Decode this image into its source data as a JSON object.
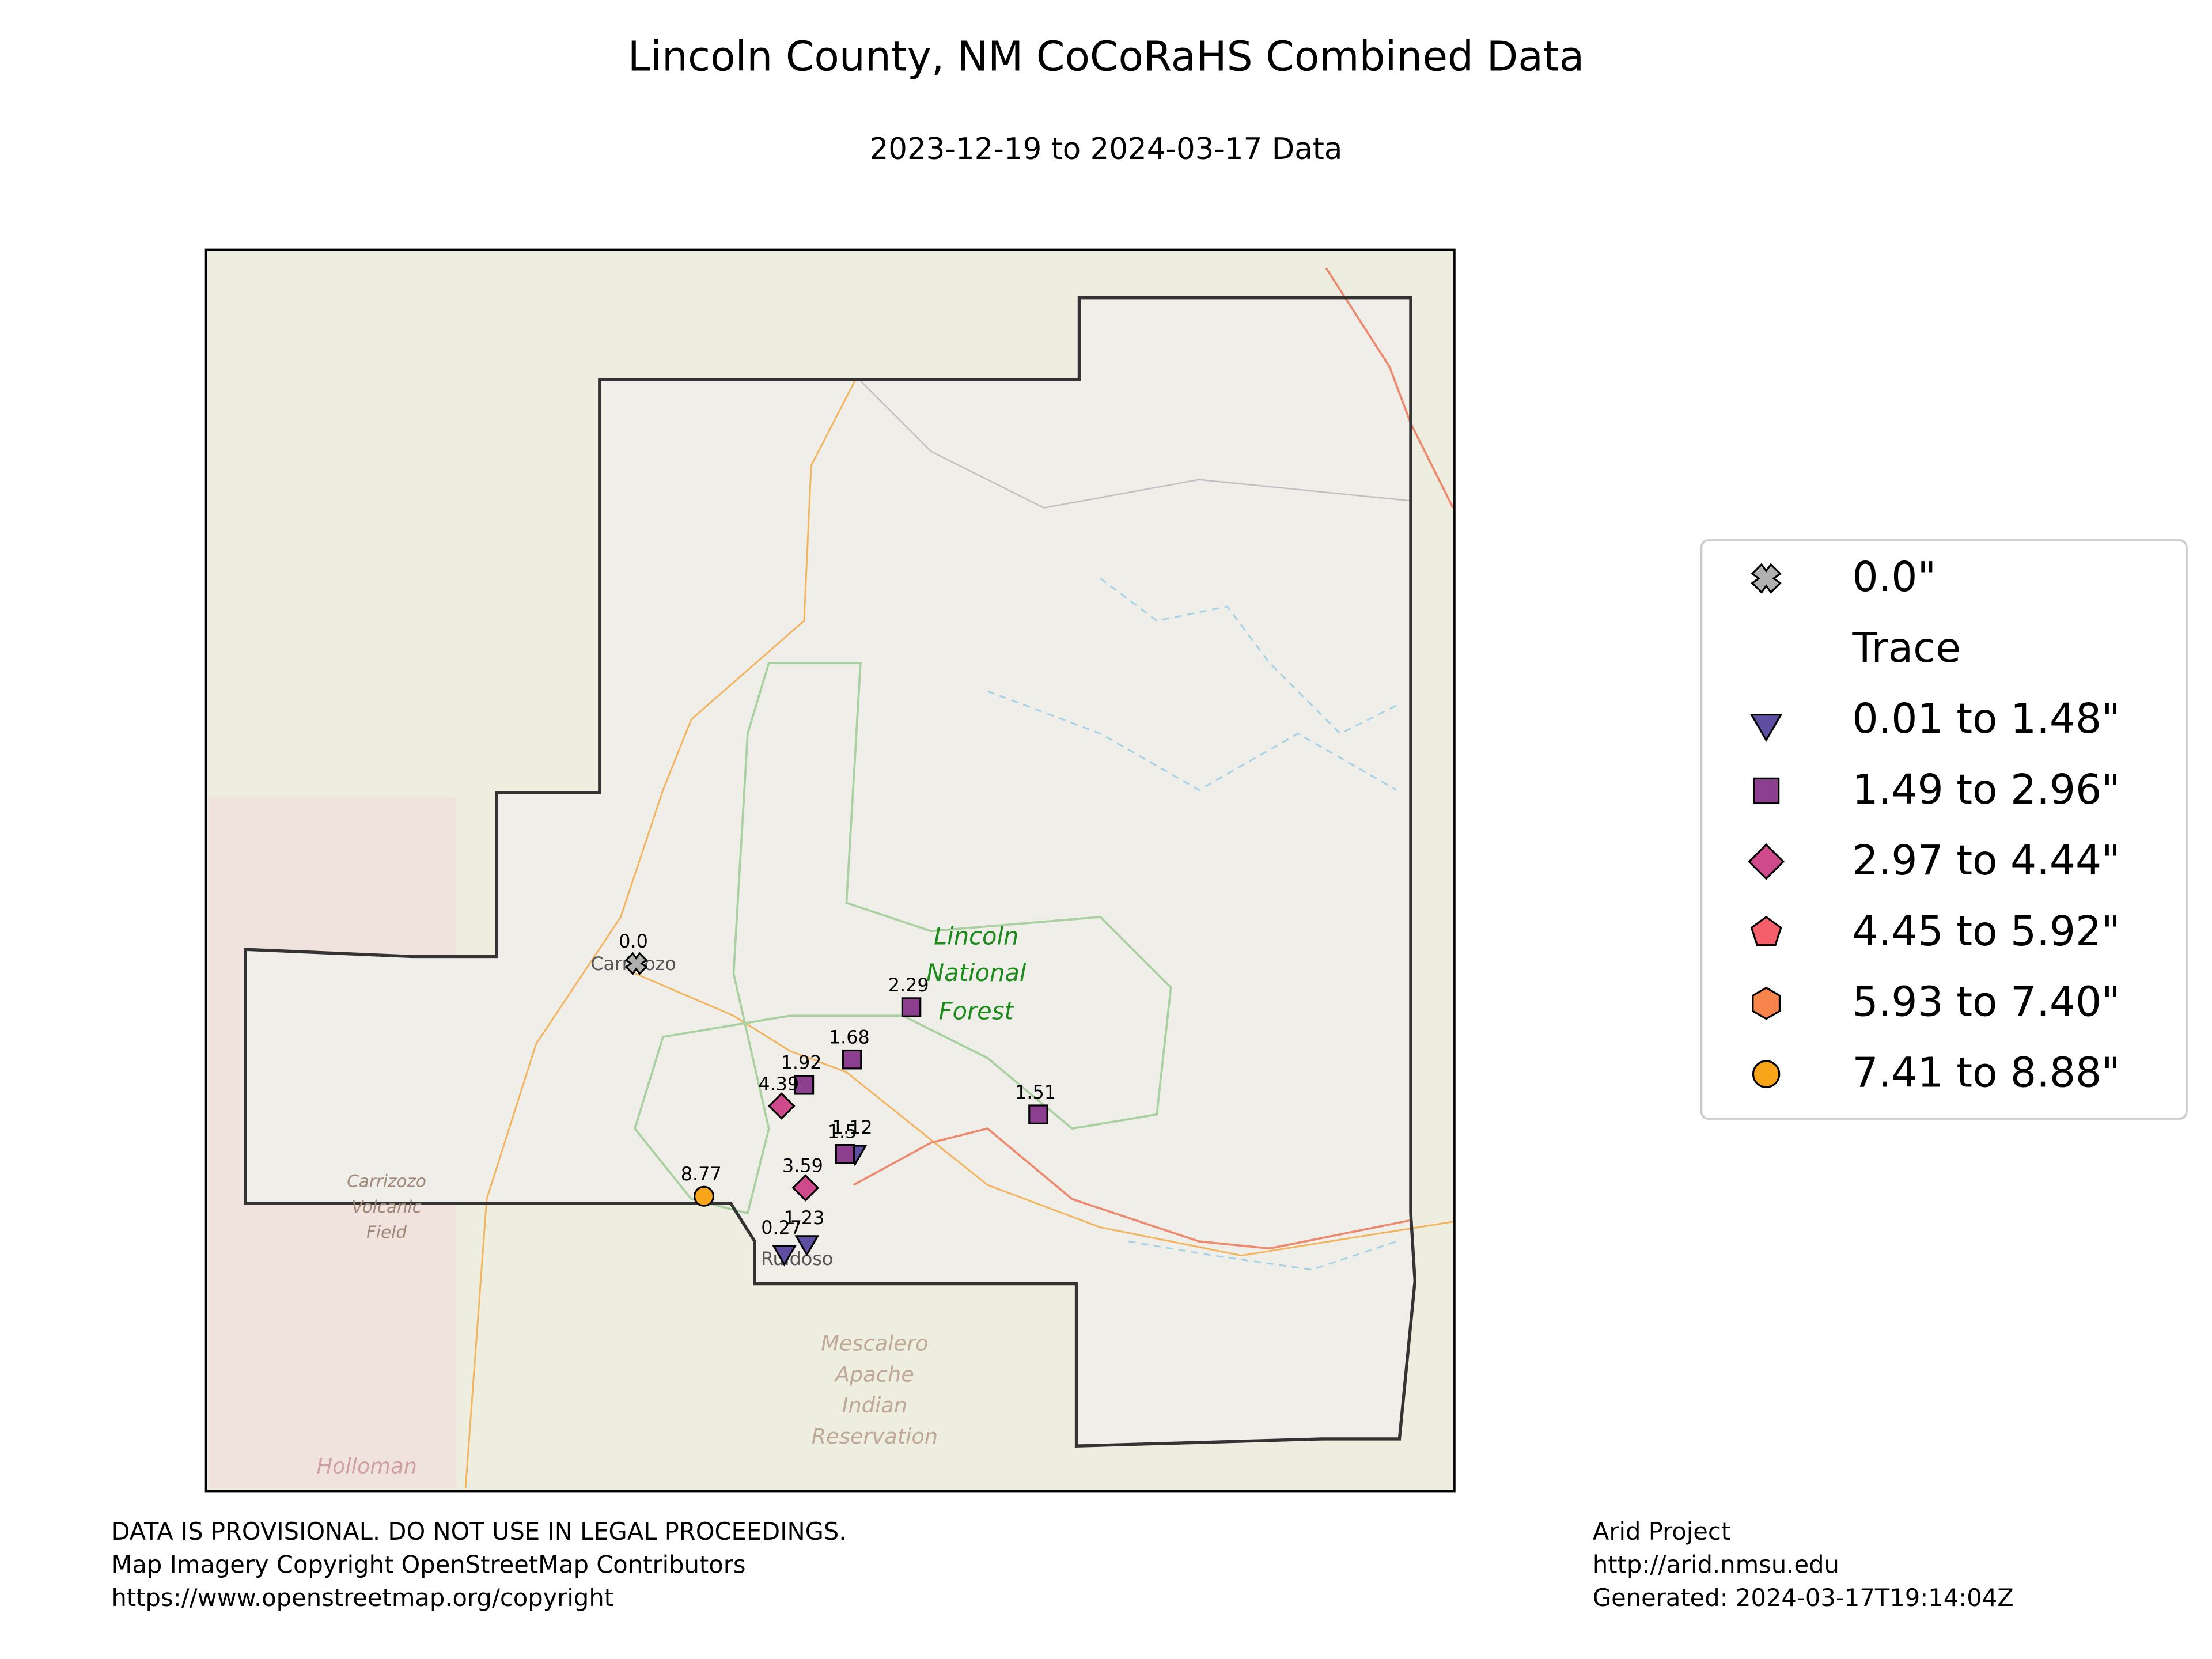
{
  "title": "Lincoln County, NM CoCoRaHS Combined Data",
  "subtitle": "2023-12-19 to 2024-03-17 Data",
  "map_labels": [
    "Carrizozo",
    "Lincoln",
    "National",
    "Forest",
    "Ruidoso",
    "Mescalero",
    "Apache",
    "Indian",
    "Reservation",
    "Carrizozo",
    "Volcanic",
    "Field",
    "Holloman"
  ],
  "stations": [
    {
      "value": 0,
      "value_label": "0.0",
      "class": 0
    },
    {
      "value": 2.29,
      "class": 3
    },
    {
      "value": 1.68,
      "class": 3
    },
    {
      "value": 1.92,
      "class": 3
    },
    {
      "value": 4.39,
      "class": 4
    },
    {
      "value": 1.51,
      "class": 3
    },
    {
      "value": 1.12,
      "class": 2
    },
    {
      "value": 1.5,
      "class": 3
    },
    {
      "value": 3.59,
      "class": 4
    },
    {
      "value": 8.77,
      "class": 7
    },
    {
      "value": 1.23,
      "class": 2
    },
    {
      "value": 0.27,
      "class": 2
    }
  ],
  "legend": [
    {
      "label": "0.0\"",
      "marker": "cross",
      "color": "#b0b0b0"
    },
    {
      "label": "Trace",
      "marker": "T",
      "color": "#000000"
    },
    {
      "label": "0.01 to 1.48\"",
      "marker": "triangle",
      "color": "#5e4fa2"
    },
    {
      "label": "1.49 to 2.96\"",
      "marker": "square",
      "color": "#8c3f8e"
    },
    {
      "label": "2.97 to 4.44\"",
      "marker": "diamond",
      "color": "#cf4a8a"
    },
    {
      "label": "4.45 to 5.92\"",
      "marker": "pentagon",
      "color": "#f45f6a"
    },
    {
      "label": "5.93 to 7.40\"",
      "marker": "hexagon",
      "color": "#f7844a"
    },
    {
      "label": "7.41 to 8.88\"",
      "marker": "circle",
      "color": "#f9a51a"
    }
  ],
  "footer_left": [
    "DATA IS PROVISIONAL. DO NOT USE IN LEGAL PROCEEDINGS.",
    "Map Imagery Copyright OpenStreetMap Contributors",
    "https://www.openstreetmap.org/copyright"
  ],
  "footer_right": [
    "Arid Project",
    "http://arid.nmsu.edu",
    "Generated: 2024-03-17T19:14:04Z"
  ]
}
